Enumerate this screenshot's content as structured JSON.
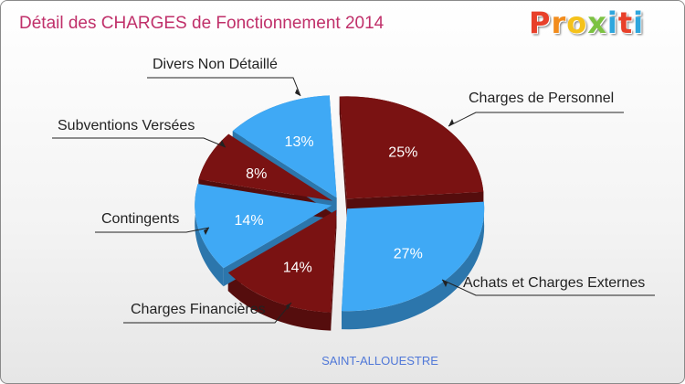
{
  "title": "Détail des CHARGES de Fonctionnement 2014",
  "logo": {
    "letters": [
      "P",
      "r",
      "o",
      "x",
      "i",
      "t",
      "i"
    ],
    "colors": [
      "#e8402a",
      "#f28c1c",
      "#f5c21b",
      "#7cc242",
      "#2fa6dd",
      "#e8402a",
      "#2fa6dd"
    ]
  },
  "town": "SAINT-ALLOUESTRE",
  "chart_data": {
    "type": "pie",
    "title": "Détail des CHARGES de Fonctionnement 2014",
    "slices": [
      {
        "label": "Charges de Personnel",
        "value": 25,
        "pct_label": "25%",
        "color": "#7a1212"
      },
      {
        "label": "Achats et Charges Externes",
        "value": 27,
        "pct_label": "27%",
        "color": "#3fa9f5"
      },
      {
        "label": "Charges Financières",
        "value": 14,
        "pct_label": "14%",
        "color": "#7a1212"
      },
      {
        "label": "Contingents",
        "value": 14,
        "pct_label": "14%",
        "color": "#3fa9f5"
      },
      {
        "label": "Subventions Versées",
        "value": 8,
        "pct_label": "8%",
        "color": "#7a1212"
      },
      {
        "label": "Divers Non Détaillé",
        "value": 13,
        "pct_label": "13%",
        "color": "#3fa9f5"
      }
    ]
  }
}
